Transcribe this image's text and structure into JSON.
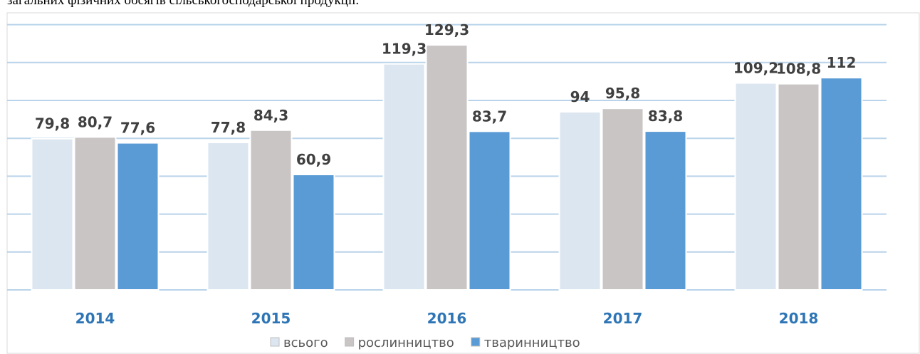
{
  "caption": "загальних фізичних обсягів сільськогосподарської продукції.",
  "chart_data": {
    "type": "bar",
    "categories": [
      "2014",
      "2015",
      "2016",
      "2017",
      "2018"
    ],
    "series": [
      {
        "name": "всього",
        "color": "#dce6f1",
        "values": [
          79.8,
          77.8,
          119.3,
          94,
          109.2
        ],
        "value_labels": [
          "79,8",
          "77,8",
          "119,3",
          "94",
          "109,2"
        ]
      },
      {
        "name": "рослинництво",
        "color": "#c9c5c5",
        "values": [
          80.7,
          84.3,
          129.3,
          95.8,
          108.8
        ],
        "value_labels": [
          "80,7",
          "84,3",
          "129,3",
          "95,8",
          "108,8"
        ]
      },
      {
        "name": "тваринництво",
        "color": "#5b9bd5",
        "values": [
          77.6,
          60.9,
          83.7,
          83.8,
          112
        ],
        "value_labels": [
          "77,6",
          "60,9",
          "83,7",
          "83,8",
          "112"
        ]
      }
    ],
    "ylim": [
      0,
      140
    ],
    "yticks": [
      0,
      20,
      40,
      60,
      80,
      100,
      120,
      140
    ],
    "grid": true
  }
}
